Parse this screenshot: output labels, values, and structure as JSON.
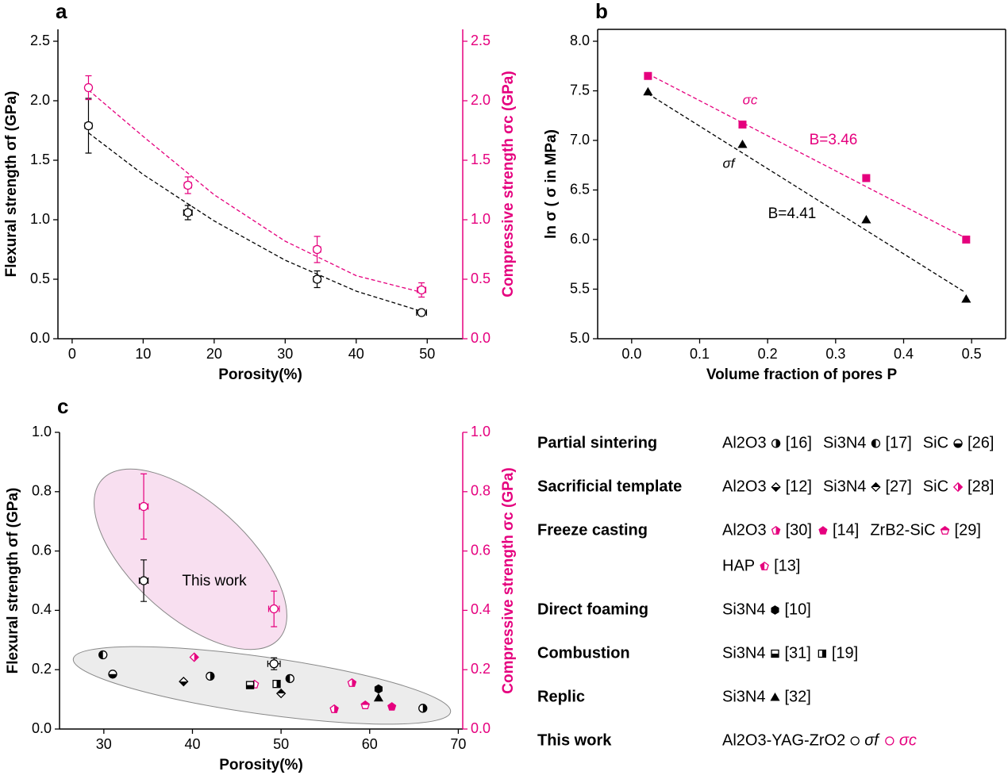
{
  "chart_data": [
    {
      "panel": "a",
      "type": "scatter",
      "xlabel": "Porosity(%)",
      "ylabel": "Flexural strength σf (GPa)",
      "y2label": "Compressive strength σc (GPa)",
      "xlim": [
        -2,
        55
      ],
      "xticks": [
        0,
        10,
        20,
        30,
        40,
        50
      ],
      "ylim": [
        0,
        2.6
      ],
      "yticks": [
        {
          "value": 0,
          "label": "0.0"
        },
        {
          "value": 0.5,
          "label": "0.5"
        },
        {
          "value": 1,
          "label": "1.0"
        },
        {
          "value": 1.5,
          "label": "1.5"
        },
        {
          "value": 2,
          "label": "2.0"
        },
        {
          "value": 2.5,
          "label": "2.5"
        }
      ],
      "y2lim": [
        0,
        2.6
      ],
      "y2ticks": [
        {
          "value": 0,
          "label": "0.0"
        },
        {
          "value": 0.5,
          "label": "0.5"
        },
        {
          "value": 1,
          "label": "1.0"
        },
        {
          "value": 1.5,
          "label": "1.5"
        },
        {
          "value": 2,
          "label": "2.0"
        },
        {
          "value": 2.5,
          "label": "2.5"
        }
      ],
      "series": [
        {
          "color": "#000000",
          "marker": "circle",
          "fill": "open",
          "x": [
            2.3,
            16.3,
            34.5,
            49.2
          ],
          "values": [
            1.79,
            1.06,
            0.5,
            0.22
          ],
          "errors": [
            0.23,
            0.06,
            0.07,
            0.02
          ],
          "x_errors": [
            0.5,
            0.6,
            0.5,
            0.7
          ]
        },
        {
          "color": "#e5007e",
          "axis": "y2",
          "marker": "circle",
          "fill": "open",
          "x": [
            2.3,
            16.3,
            34.5,
            49.2
          ],
          "values": [
            2.11,
            1.29,
            0.75,
            0.41
          ],
          "errors": [
            0.1,
            0.07,
            0.11,
            0.06
          ],
          "x_errors": [
            0.4,
            0.5,
            0.5,
            0.6
          ]
        }
      ],
      "fits": [
        {
          "color": "#000000",
          "x": [
            2.3,
            10,
            20,
            30,
            40,
            49.2
          ],
          "values": [
            1.73,
            1.38,
            0.99,
            0.66,
            0.4,
            0.23
          ]
        },
        {
          "color": "#e5007e",
          "axis": "y2",
          "x": [
            2.3,
            10,
            20,
            30,
            40,
            49.2
          ],
          "values": [
            2.09,
            1.7,
            1.21,
            0.82,
            0.53,
            0.39
          ]
        }
      ]
    },
    {
      "panel": "b",
      "type": "scatter",
      "xlabel": "Volume fraction of pores  P",
      "ylabel": "ln σ  ( σ  in MPa)",
      "xlim": [
        -0.05,
        0.55
      ],
      "xticks": [
        {
          "value": 0,
          "label": "0.0"
        },
        0.1,
        0.2,
        0.3,
        0.4,
        0.5
      ],
      "ylim": [
        5.0,
        8.12
      ],
      "yticks": [
        {
          "value": 5,
          "label": "5.0"
        },
        5.5,
        {
          "value": 6,
          "label": "6.0"
        },
        6.5,
        {
          "value": 7,
          "label": "7.0"
        },
        7.5,
        {
          "value": 8,
          "label": "8.0"
        }
      ],
      "series": [
        {
          "color": "#e5007e",
          "marker": "square",
          "fill": "filled",
          "x": [
            0.024,
            0.163,
            0.345,
            0.492
          ],
          "values": [
            7.65,
            7.16,
            6.62,
            6.0
          ]
        },
        {
          "color": "#000000",
          "marker": "triangle",
          "fill": "filled",
          "x": [
            0.024,
            0.163,
            0.345,
            0.492
          ],
          "values": [
            7.49,
            6.96,
            6.2,
            5.4
          ]
        }
      ],
      "fits": [
        {
          "color": "#e5007e",
          "x": [
            0.024,
            0.49
          ],
          "values": [
            7.67,
            6.02
          ]
        },
        {
          "color": "#000000",
          "x": [
            0.024,
            0.49
          ],
          "values": [
            7.47,
            5.47
          ]
        }
      ],
      "annotations": [
        {
          "text": "σc",
          "color": "#e5007e"
        },
        {
          "text": "B=3.46",
          "color": "#e5007e"
        },
        {
          "text": "σf",
          "color": "#000000"
        },
        {
          "text": "B=4.41",
          "color": "#000000"
        }
      ]
    },
    {
      "panel": "c",
      "type": "scatter",
      "xlabel": "Porosity(%)",
      "ylabel": "Flexural strength σf (GPa)",
      "y2label": "Compressive strength σc (GPa)",
      "xlim": [
        25,
        70.5
      ],
      "xticks": [
        30,
        40,
        50,
        60,
        70
      ],
      "ylim": [
        0,
        1
      ],
      "yticks": [
        {
          "value": 0,
          "label": "0.0"
        },
        0.2,
        0.4,
        0.6,
        0.8,
        {
          "value": 1,
          "label": "1.0"
        }
      ],
      "y2lim": [
        0,
        1
      ],
      "y2ticks": [
        {
          "value": 0,
          "label": "0.0"
        },
        0.2,
        0.4,
        0.6,
        0.8,
        {
          "value": 1,
          "label": "1.0"
        }
      ],
      "annotations": [
        {
          "text": "This work",
          "color": "#000000"
        }
      ],
      "groups": [
        {
          "label": "Partial sintering",
          "materials": [
            {
              "name": "Al2O3",
              "series": [
                {
                  "name": "[16]",
                  "color": "#000000",
                  "marker": "circle",
                  "fill": "half-right",
                  "x": [
                    42,
                    66
                  ],
                  "values": [
                    0.178,
                    0.07
                  ]
                }
              ]
            },
            {
              "name": "Si3N4",
              "series": [
                {
                  "name": "[17]",
                  "color": "#000000",
                  "marker": "circle",
                  "fill": "half-left",
                  "x": [
                    29.9,
                    51
                  ],
                  "values": [
                    0.25,
                    0.17
                  ]
                }
              ]
            },
            {
              "name": "SiC",
              "series": [
                {
                  "name": "[26]",
                  "color": "#000000",
                  "marker": "circle",
                  "fill": "half-bottom",
                  "x": [
                    31
                  ],
                  "values": [
                    0.185
                  ]
                }
              ]
            }
          ]
        },
        {
          "label": "Sacrificial template",
          "materials": [
            {
              "name": "Al2O3",
              "series": [
                {
                  "name": "[12]",
                  "color": "#000000",
                  "marker": "diamond",
                  "fill": "half-bottom",
                  "x": [
                    39
                  ],
                  "values": [
                    0.16
                  ]
                }
              ]
            },
            {
              "name": "Si3N4",
              "series": [
                {
                  "name": "[27]",
                  "color": "#000000",
                  "marker": "diamond",
                  "fill": "half-top",
                  "x": [
                    50
                  ],
                  "values": [
                    0.12
                  ]
                }
              ]
            },
            {
              "name": "SiC",
              "series": [
                {
                  "name": "[28]",
                  "color": "#e5007e",
                  "marker": "diamond",
                  "fill": "half-right",
                  "x": [
                    40.2
                  ],
                  "values": [
                    0.242
                  ]
                }
              ]
            }
          ]
        },
        {
          "label": "Freeze casting",
          "materials": [
            {
              "name": "Al2O3",
              "series": [
                {
                  "name": "[30]",
                  "color": "#e5007e",
                  "marker": "pentagon",
                  "fill": "half-right",
                  "x": [
                    58,
                    56
                  ],
                  "values": [
                    0.155,
                    0.067
                  ]
                },
                {
                  "name": "[14]",
                  "color": "#e5007e",
                  "marker": "pentagon",
                  "fill": "filled",
                  "x": [
                    62.5
                  ],
                  "values": [
                    0.075
                  ]
                }
              ]
            },
            {
              "name": "ZrB2-SiC",
              "series": [
                {
                  "name": "[29]",
                  "color": "#e5007e",
                  "marker": "pentagon",
                  "fill": "half-top",
                  "x": [
                    59.5
                  ],
                  "values": [
                    0.08
                  ]
                }
              ]
            },
            {
              "name": "HAP",
              "series": [
                {
                  "name": "[13]",
                  "color": "#e5007e",
                  "marker": "pentagon",
                  "fill": "half-left",
                  "x": [
                    47
                  ],
                  "values": [
                    0.15
                  ]
                }
              ]
            }
          ]
        },
        {
          "label": "Direct foaming",
          "materials": [
            {
              "name": "Si3N4",
              "series": [
                {
                  "name": "[10]",
                  "color": "#000000",
                  "marker": "hexagon",
                  "fill": "filled",
                  "x": [
                    61
                  ],
                  "values": [
                    0.135
                  ]
                }
              ]
            }
          ]
        },
        {
          "label": "Combustion",
          "materials": [
            {
              "name": "Si3N4",
              "series": [
                {
                  "name": "[31]",
                  "color": "#000000",
                  "marker": "square",
                  "fill": "half-bottom",
                  "x": [
                    46.5
                  ],
                  "values": [
                    0.148
                  ]
                },
                {
                  "name": "[19]",
                  "color": "#000000",
                  "marker": "square",
                  "fill": "half-right",
                  "x": [
                    49.5
                  ],
                  "values": [
                    0.152
                  ]
                }
              ]
            }
          ]
        },
        {
          "label": "Replic",
          "materials": [
            {
              "name": "Si3N4",
              "series": [
                {
                  "name": "[32]",
                  "color": "#000000",
                  "marker": "triangle",
                  "fill": "filled",
                  "x": [
                    61
                  ],
                  "values": [
                    0.105
                  ]
                }
              ]
            }
          ]
        },
        {
          "label": "This work",
          "materials": [
            {
              "name": "Al2O3-YAG-ZrO2",
              "series": [
                {
                  "name": "σf",
                  "color": "#000000",
                  "marker": "circle",
                  "fill": "open",
                  "x": [
                    34.5,
                    49.2
                  ],
                  "values": [
                    0.5,
                    0.22
                  ],
                  "errors": [
                    0.07,
                    0.02
                  ],
                  "x_errors": [
                    0.5,
                    0.7
                  ]
                },
                {
                  "name": "σc",
                  "color": "#e5007e",
                  "axis": "y2",
                  "marker": "circle",
                  "fill": "open",
                  "x": [
                    34.5,
                    49.2
                  ],
                  "values": [
                    0.75,
                    0.405
                  ],
                  "errors": [
                    0.11,
                    0.06
                  ],
                  "x_errors": [
                    0.5,
                    0.6
                  ]
                }
              ]
            }
          ]
        }
      ]
    }
  ]
}
